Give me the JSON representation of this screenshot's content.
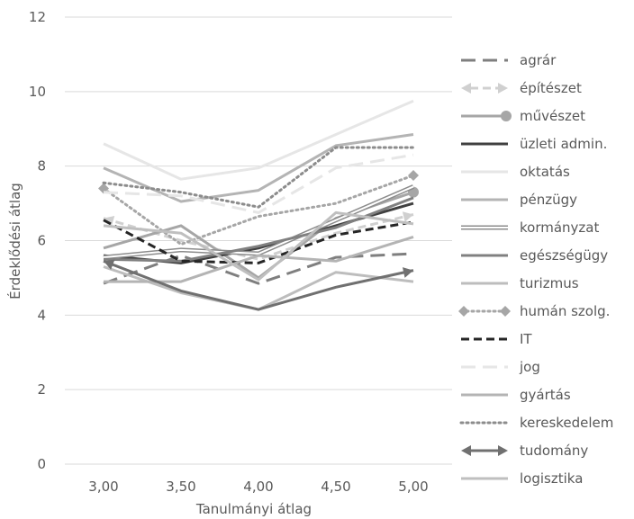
{
  "chart_data": {
    "type": "line",
    "xlabel": "Tanulmányi átlag",
    "ylabel": "Érdeklődési átlag",
    "x": [
      "3,00",
      "3,50",
      "4,00",
      "4,50",
      "5,00"
    ],
    "ylim": [
      0,
      12
    ],
    "yticks": [
      "0",
      "2",
      "4",
      "6",
      "8",
      "10",
      "12"
    ],
    "grid": true,
    "legend_position": "right",
    "series": [
      {
        "name": "agrár",
        "values": [
          4.85,
          5.6,
          4.85,
          5.55,
          5.65
        ],
        "color": "#7f7f7f",
        "dash": "long-dash"
      },
      {
        "name": "építészet",
        "values": [
          6.6,
          6.0,
          5.5,
          6.2,
          6.7
        ],
        "color": "#d0d0d0",
        "dash": "dash",
        "marker": "arrow"
      },
      {
        "name": "művészet",
        "values": [
          5.8,
          6.4,
          5.0,
          6.6,
          7.3
        ],
        "color": "#a6a6a6",
        "dash": "solid",
        "marker": "circle-end"
      },
      {
        "name": "üzleti admin.",
        "values": [
          5.6,
          5.4,
          5.8,
          6.4,
          7.0
        ],
        "color": "#404040",
        "dash": "solid"
      },
      {
        "name": "oktatás",
        "values": [
          8.6,
          7.65,
          7.95,
          8.85,
          9.75
        ],
        "color": "#e6e6e6",
        "dash": "solid"
      },
      {
        "name": "pénzügy",
        "values": [
          7.95,
          7.05,
          7.35,
          8.55,
          8.85
        ],
        "color": "#b4b4b4",
        "dash": "solid"
      },
      {
        "name": "kormányzat",
        "values": [
          5.55,
          5.75,
          5.65,
          6.55,
          7.45
        ],
        "color": "#8c8c8c",
        "dash": "double"
      },
      {
        "name": "egészségügy",
        "values": [
          5.5,
          5.45,
          5.85,
          6.35,
          7.15
        ],
        "color": "#808080",
        "dash": "solid"
      },
      {
        "name": "turizmus",
        "values": [
          5.3,
          4.6,
          4.15,
          5.15,
          4.9
        ],
        "color": "#bdbdbd",
        "dash": "solid"
      },
      {
        "name": "humán szolg.",
        "values": [
          7.4,
          5.9,
          6.65,
          7.0,
          7.75
        ],
        "color": "#a6a6a6",
        "dash": "dot",
        "marker": "diamond"
      },
      {
        "name": "IT",
        "values": [
          6.55,
          5.45,
          5.4,
          6.15,
          6.5
        ],
        "color": "#262626",
        "dash": "dash"
      },
      {
        "name": "jog",
        "values": [
          7.3,
          7.2,
          6.75,
          7.95,
          8.3
        ],
        "color": "#e6e6e6",
        "dash": "long-dash"
      },
      {
        "name": "gyártás",
        "values": [
          4.9,
          4.9,
          5.6,
          5.45,
          6.1
        ],
        "color": "#b4b4b4",
        "dash": "solid"
      },
      {
        "name": "kereskedelem",
        "values": [
          7.55,
          7.3,
          6.9,
          8.5,
          8.5
        ],
        "color": "#8c8c8c",
        "dash": "dot"
      },
      {
        "name": "tudomány",
        "values": [
          5.45,
          4.65,
          4.15,
          4.75,
          5.2
        ],
        "color": "#707070",
        "dash": "solid",
        "marker": "arrow"
      },
      {
        "name": "logisztika",
        "values": [
          6.4,
          6.2,
          4.95,
          6.75,
          6.45
        ],
        "color": "#bfbfbf",
        "dash": "solid"
      }
    ]
  }
}
